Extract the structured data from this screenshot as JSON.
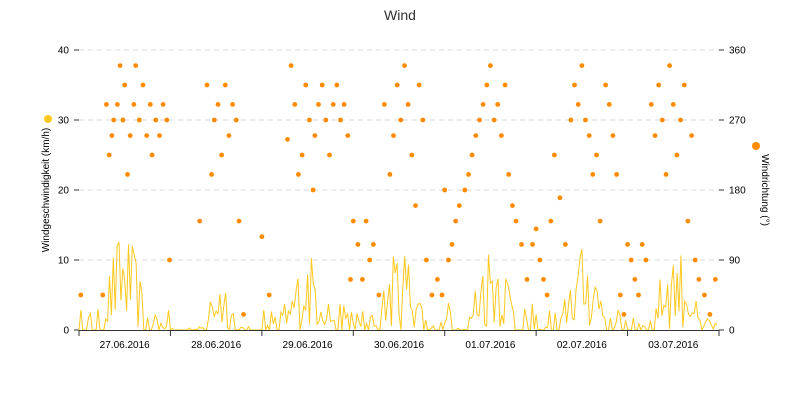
{
  "chart_data": {
    "type": "line",
    "title": "Wind",
    "x_categories": [
      "27.06.2016",
      "28.06.2016",
      "29.06.2016",
      "30.06.2016",
      "01.07.2016",
      "02.07.2016",
      "03.07.2016"
    ],
    "y_left": {
      "label": "Windgeschwindigkeit (km/h)",
      "min": 0,
      "max": 40,
      "ticks": [
        "0",
        "10",
        "20",
        "30",
        "40"
      ]
    },
    "y_right": {
      "label": "Windrichtung (°)",
      "min": 0,
      "max": 360,
      "ticks": [
        "0",
        "90",
        "180",
        "270",
        "360"
      ]
    },
    "grid": true,
    "colors": {
      "speed": "#ffc81e",
      "direction": "#ff8c00",
      "grid": "#d8d8d8",
      "axis": "#333333"
    },
    "series": [
      {
        "name": "Windgeschwindigkeit (km/h)",
        "kind": "line",
        "axis": "left",
        "day_profiles": [
          {
            "day": "27.06.2016",
            "peak": 14,
            "active": [
              0.28,
              0.7
            ],
            "night": 3
          },
          {
            "day": "28.06.2016",
            "peak": 8,
            "active": [
              0.4,
              0.7
            ],
            "night": 0.5
          },
          {
            "day": "29.06.2016",
            "peak": 11,
            "active": [
              0.3,
              0.75
            ],
            "night": 4
          },
          {
            "day": "30.06.2016",
            "peak": 12,
            "active": [
              0.3,
              0.75
            ],
            "night": 3
          },
          {
            "day": "01.07.2016",
            "peak": 13,
            "active": [
              0.3,
              0.75
            ],
            "night": 4
          },
          {
            "day": "02.07.2016",
            "peak": 12,
            "active": [
              0.3,
              0.75
            ],
            "night": 3
          },
          {
            "day": "03.07.2016",
            "peak": 12,
            "active": [
              0.3,
              0.75
            ],
            "night": 2
          }
        ]
      },
      {
        "name": "Windrichtung (°)",
        "kind": "scatter",
        "axis": "right",
        "points": [
          [
            0.02,
            45
          ],
          [
            0.26,
            45
          ],
          [
            0.3,
            290
          ],
          [
            0.33,
            225
          ],
          [
            0.36,
            250
          ],
          [
            0.38,
            270
          ],
          [
            0.42,
            290
          ],
          [
            0.45,
            340
          ],
          [
            0.48,
            270
          ],
          [
            0.5,
            315
          ],
          [
            0.53,
            200
          ],
          [
            0.56,
            250
          ],
          [
            0.6,
            290
          ],
          [
            0.62,
            340
          ],
          [
            0.66,
            270
          ],
          [
            0.7,
            315
          ],
          [
            0.74,
            250
          ],
          [
            0.78,
            290
          ],
          [
            0.8,
            225
          ],
          [
            0.84,
            270
          ],
          [
            0.88,
            250
          ],
          [
            0.92,
            290
          ],
          [
            0.96,
            270
          ],
          [
            0.99,
            90
          ],
          [
            1.32,
            140
          ],
          [
            1.4,
            315
          ],
          [
            1.45,
            200
          ],
          [
            1.48,
            270
          ],
          [
            1.52,
            290
          ],
          [
            1.56,
            225
          ],
          [
            1.6,
            315
          ],
          [
            1.64,
            250
          ],
          [
            1.68,
            290
          ],
          [
            1.72,
            270
          ],
          [
            1.75,
            140
          ],
          [
            1.8,
            20
          ],
          [
            2.0,
            120
          ],
          [
            2.08,
            45
          ],
          [
            2.28,
            245
          ],
          [
            2.32,
            340
          ],
          [
            2.36,
            290
          ],
          [
            2.4,
            200
          ],
          [
            2.44,
            225
          ],
          [
            2.48,
            315
          ],
          [
            2.52,
            270
          ],
          [
            2.56,
            180
          ],
          [
            2.58,
            250
          ],
          [
            2.62,
            290
          ],
          [
            2.66,
            315
          ],
          [
            2.7,
            270
          ],
          [
            2.74,
            225
          ],
          [
            2.78,
            290
          ],
          [
            2.82,
            315
          ],
          [
            2.86,
            270
          ],
          [
            2.9,
            290
          ],
          [
            2.94,
            250
          ],
          [
            2.97,
            65
          ],
          [
            3.0,
            140
          ],
          [
            3.05,
            110
          ],
          [
            3.1,
            65
          ],
          [
            3.14,
            140
          ],
          [
            3.18,
            90
          ],
          [
            3.22,
            110
          ],
          [
            3.28,
            45
          ],
          [
            3.34,
            290
          ],
          [
            3.4,
            200
          ],
          [
            3.44,
            250
          ],
          [
            3.48,
            315
          ],
          [
            3.52,
            270
          ],
          [
            3.56,
            340
          ],
          [
            3.6,
            290
          ],
          [
            3.64,
            225
          ],
          [
            3.68,
            160
          ],
          [
            3.72,
            315
          ],
          [
            3.76,
            270
          ],
          [
            3.8,
            90
          ],
          [
            3.86,
            45
          ],
          [
            3.92,
            65
          ],
          [
            3.97,
            45
          ],
          [
            4.0,
            180
          ],
          [
            4.04,
            90
          ],
          [
            4.08,
            110
          ],
          [
            4.12,
            140
          ],
          [
            4.16,
            160
          ],
          [
            4.22,
            180
          ],
          [
            4.26,
            200
          ],
          [
            4.3,
            225
          ],
          [
            4.34,
            250
          ],
          [
            4.38,
            270
          ],
          [
            4.42,
            290
          ],
          [
            4.46,
            315
          ],
          [
            4.5,
            340
          ],
          [
            4.54,
            270
          ],
          [
            4.58,
            290
          ],
          [
            4.62,
            250
          ],
          [
            4.66,
            315
          ],
          [
            4.7,
            200
          ],
          [
            4.74,
            160
          ],
          [
            4.78,
            140
          ],
          [
            4.84,
            110
          ],
          [
            4.9,
            65
          ],
          [
            4.96,
            110
          ],
          [
            5.0,
            130
          ],
          [
            5.04,
            90
          ],
          [
            5.08,
            65
          ],
          [
            5.12,
            45
          ],
          [
            5.16,
            140
          ],
          [
            5.2,
            225
          ],
          [
            5.26,
            170
          ],
          [
            5.32,
            110
          ],
          [
            5.38,
            270
          ],
          [
            5.42,
            315
          ],
          [
            5.46,
            290
          ],
          [
            5.5,
            340
          ],
          [
            5.54,
            270
          ],
          [
            5.58,
            250
          ],
          [
            5.62,
            200
          ],
          [
            5.66,
            225
          ],
          [
            5.7,
            140
          ],
          [
            5.76,
            315
          ],
          [
            5.8,
            290
          ],
          [
            5.84,
            250
          ],
          [
            5.88,
            200
          ],
          [
            5.92,
            45
          ],
          [
            5.96,
            20
          ],
          [
            6.0,
            110
          ],
          [
            6.04,
            90
          ],
          [
            6.08,
            65
          ],
          [
            6.12,
            45
          ],
          [
            6.16,
            110
          ],
          [
            6.2,
            90
          ],
          [
            6.26,
            290
          ],
          [
            6.3,
            250
          ],
          [
            6.34,
            315
          ],
          [
            6.38,
            270
          ],
          [
            6.42,
            200
          ],
          [
            6.46,
            340
          ],
          [
            6.5,
            290
          ],
          [
            6.54,
            225
          ],
          [
            6.58,
            270
          ],
          [
            6.62,
            315
          ],
          [
            6.66,
            140
          ],
          [
            6.7,
            250
          ],
          [
            6.74,
            90
          ],
          [
            6.78,
            65
          ],
          [
            6.84,
            45
          ],
          [
            6.9,
            20
          ],
          [
            6.96,
            65
          ]
        ]
      }
    ]
  }
}
